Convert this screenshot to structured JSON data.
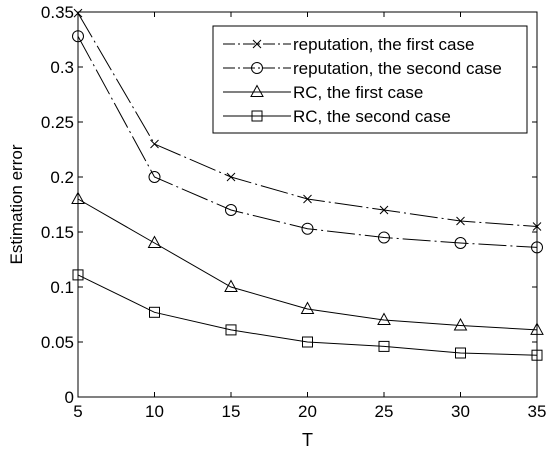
{
  "chart_data": {
    "type": "line",
    "title": "",
    "xlabel": "T",
    "ylabel": "Estimation error",
    "xlim": [
      5,
      35
    ],
    "ylim": [
      0,
      0.35
    ],
    "x_ticks": [
      5,
      10,
      15,
      20,
      25,
      30,
      35
    ],
    "y_ticks": [
      0,
      0.05,
      0.1,
      0.15,
      0.2,
      0.25,
      0.3,
      0.35
    ],
    "grid": false,
    "legend_position": "top-right",
    "x": [
      5,
      10,
      15,
      20,
      25,
      30,
      35
    ],
    "series": [
      {
        "name": "reputation, the first case",
        "values": [
          0.349,
          0.23,
          0.2,
          0.18,
          0.17,
          0.16,
          0.155
        ],
        "marker": "x",
        "line_style": "dash-dot",
        "color": "#000000"
      },
      {
        "name": "reputation, the second case",
        "values": [
          0.328,
          0.2,
          0.17,
          0.153,
          0.145,
          0.14,
          0.136
        ],
        "marker": "circle",
        "line_style": "dash-dot",
        "color": "#000000"
      },
      {
        "name": "RC, the first case",
        "values": [
          0.18,
          0.14,
          0.1,
          0.08,
          0.07,
          0.065,
          0.061
        ],
        "marker": "triangle",
        "line_style": "solid",
        "color": "#000000"
      },
      {
        "name": "RC, the second case",
        "values": [
          0.111,
          0.077,
          0.061,
          0.05,
          0.046,
          0.04,
          0.038
        ],
        "marker": "square",
        "line_style": "solid",
        "color": "#000000"
      }
    ]
  }
}
